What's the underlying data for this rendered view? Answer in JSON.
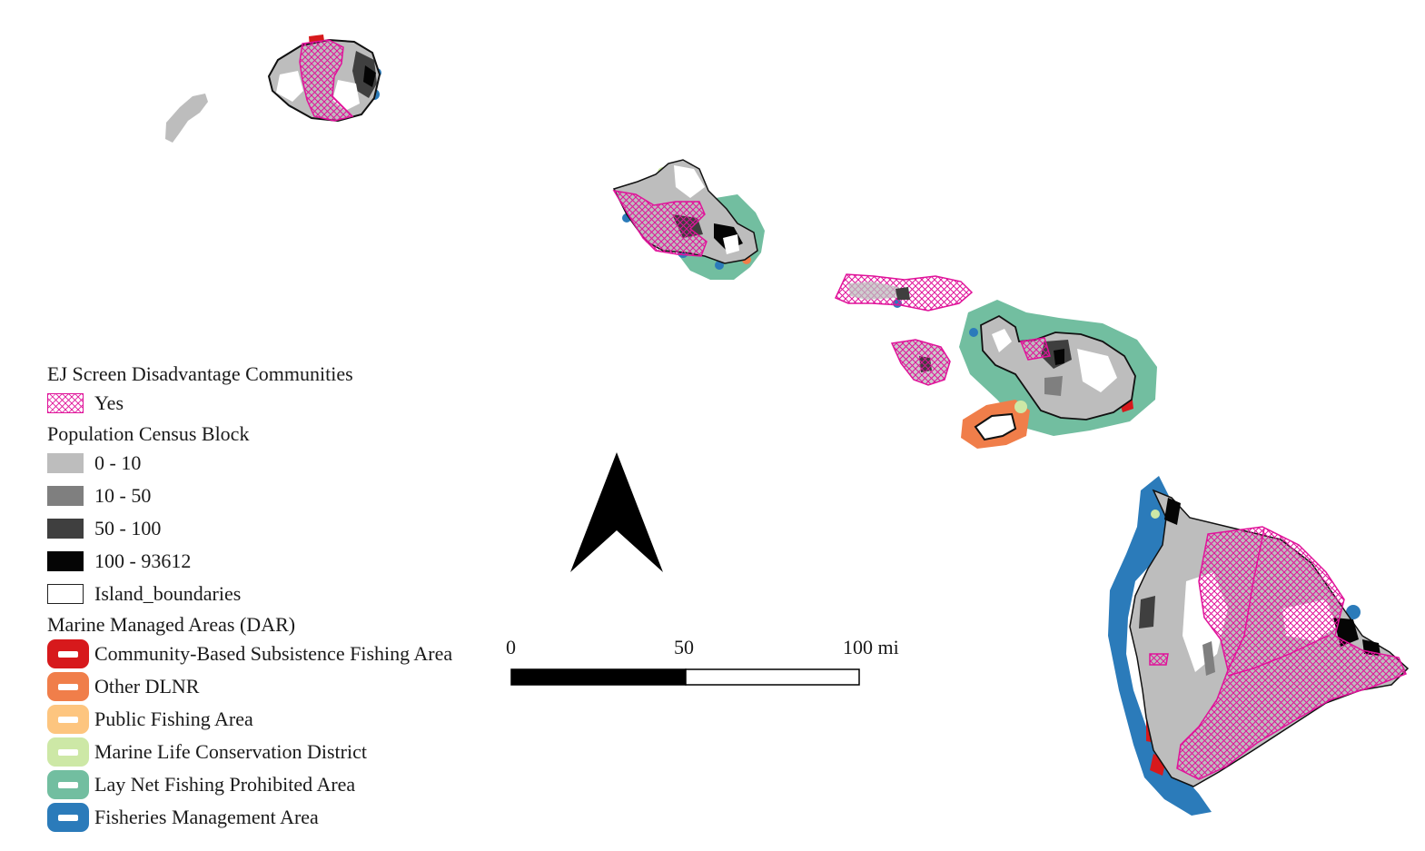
{
  "legend": {
    "ej": {
      "title": "EJ Screen Disadvantage Communities",
      "items": [
        {
          "label": "Yes",
          "color": "#e0139a"
        }
      ]
    },
    "population": {
      "title": "Population Census Block",
      "items": [
        {
          "label": "0 - 10",
          "color": "#bdbdbd"
        },
        {
          "label": "10 - 50",
          "color": "#7f7f7f"
        },
        {
          "label": "50 - 100",
          "color": "#3f3f3f"
        },
        {
          "label": "100 - 93612",
          "color": "#050505"
        },
        {
          "label": "Island_boundaries",
          "color": "#ffffff"
        }
      ]
    },
    "mma": {
      "title": "Marine Managed Areas (DAR)",
      "items": [
        {
          "label": "Community-Based Subsistence Fishing Area",
          "color": "#d7191c"
        },
        {
          "label": "Other DLNR",
          "color": "#f07e4a"
        },
        {
          "label": "Public Fishing Area",
          "color": "#fdc57f"
        },
        {
          "label": "Marine Life Conservation District",
          "color": "#cde8a6"
        },
        {
          "label": "Lay Net Fishing Prohibited Area",
          "color": "#72bea0"
        },
        {
          "label": "Fisheries Management Area",
          "color": "#2b7bba"
        }
      ]
    }
  },
  "scale_bar": {
    "labels": [
      "0",
      "50",
      "100 mi"
    ]
  },
  "north_arrow": {
    "icon": "north-arrow-icon"
  }
}
